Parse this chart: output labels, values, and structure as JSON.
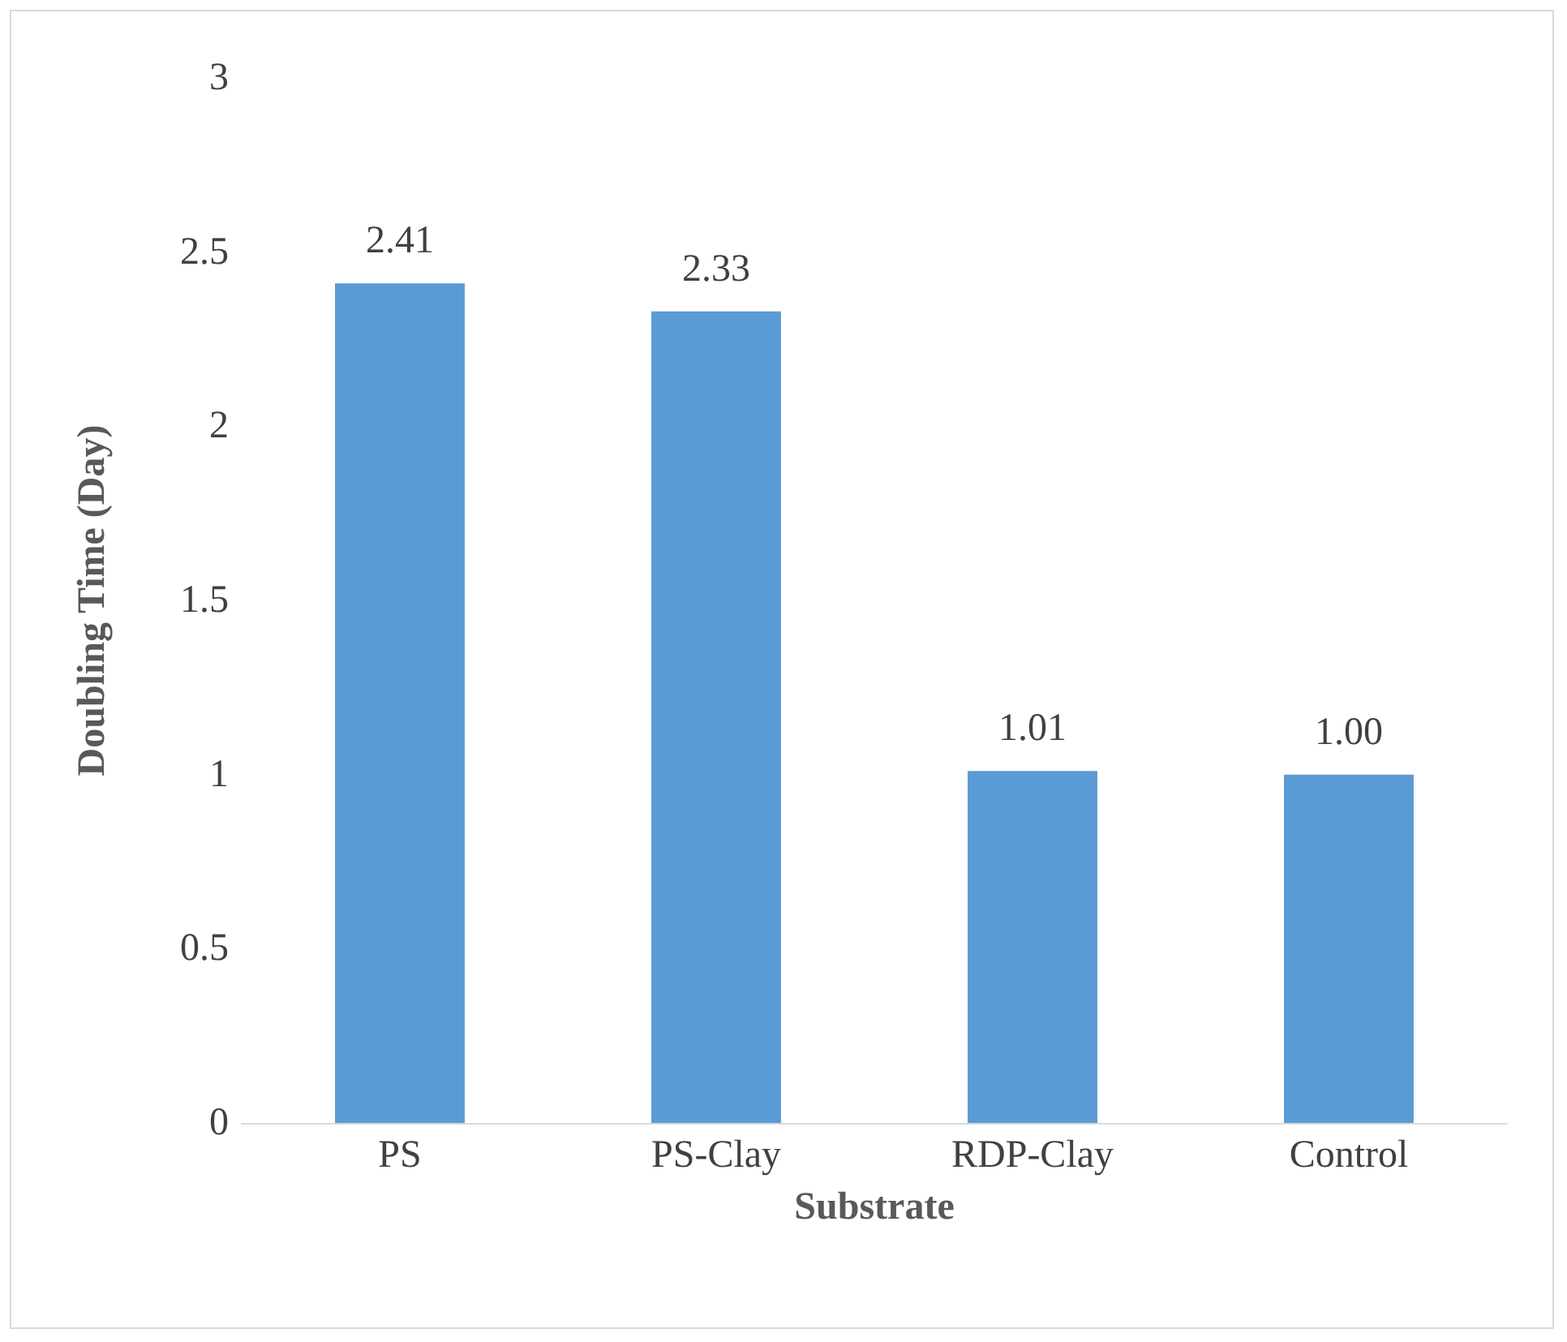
{
  "chart_data": {
    "type": "bar",
    "xlabel": "Substrate",
    "ylabel": "Doubling Time (Day)",
    "categories": [
      "PS",
      "PS-Clay",
      "RDP-Clay",
      "Control"
    ],
    "values": [
      2.41,
      2.33,
      1.01,
      1.0
    ],
    "value_labels": [
      "2.41",
      "2.33",
      "1.01",
      "1.00"
    ],
    "color": "#5b9bd5",
    "ylim": [
      0,
      3
    ],
    "yticks": [
      0,
      0.5,
      1,
      1.5,
      2,
      2.5,
      3
    ],
    "grid": false
  }
}
